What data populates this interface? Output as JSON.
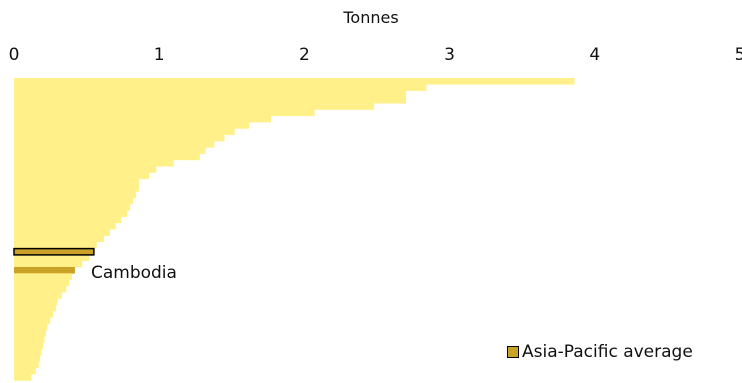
{
  "chart_data": {
    "type": "bar",
    "orientation": "horizontal",
    "xlabel": "Tonnes",
    "xlim": [
      0,
      5
    ],
    "xticks": [
      "0",
      "1",
      "2",
      "3",
      "4",
      "5"
    ],
    "values": [
      3.86,
      2.84,
      2.7,
      2.7,
      2.48,
      2.07,
      1.77,
      1.62,
      1.52,
      1.45,
      1.38,
      1.32,
      1.28,
      1.1,
      0.98,
      0.93,
      0.86,
      0.86,
      0.84,
      0.82,
      0.8,
      0.78,
      0.74,
      0.7,
      0.66,
      0.62,
      0.57,
      0.55,
      0.52,
      0.47,
      0.42,
      0.4,
      0.38,
      0.36,
      0.33,
      0.3,
      0.29,
      0.27,
      0.25,
      0.23,
      0.22,
      0.21,
      0.2,
      0.19,
      0.18,
      0.17,
      0.15,
      0.12
    ],
    "highlight": {
      "label": "Cambodia",
      "value": 0.42,
      "index": 30
    },
    "average": {
      "label": "Asia-Pacific average",
      "value": 0.55,
      "index": 27
    },
    "colors": {
      "bar": "#fff08a",
      "highlight": "#c9a227",
      "outline": "#000000"
    },
    "legend": {
      "entries": [
        "Asia-Pacific average"
      ],
      "position": "bottom-right"
    },
    "grid": false
  }
}
